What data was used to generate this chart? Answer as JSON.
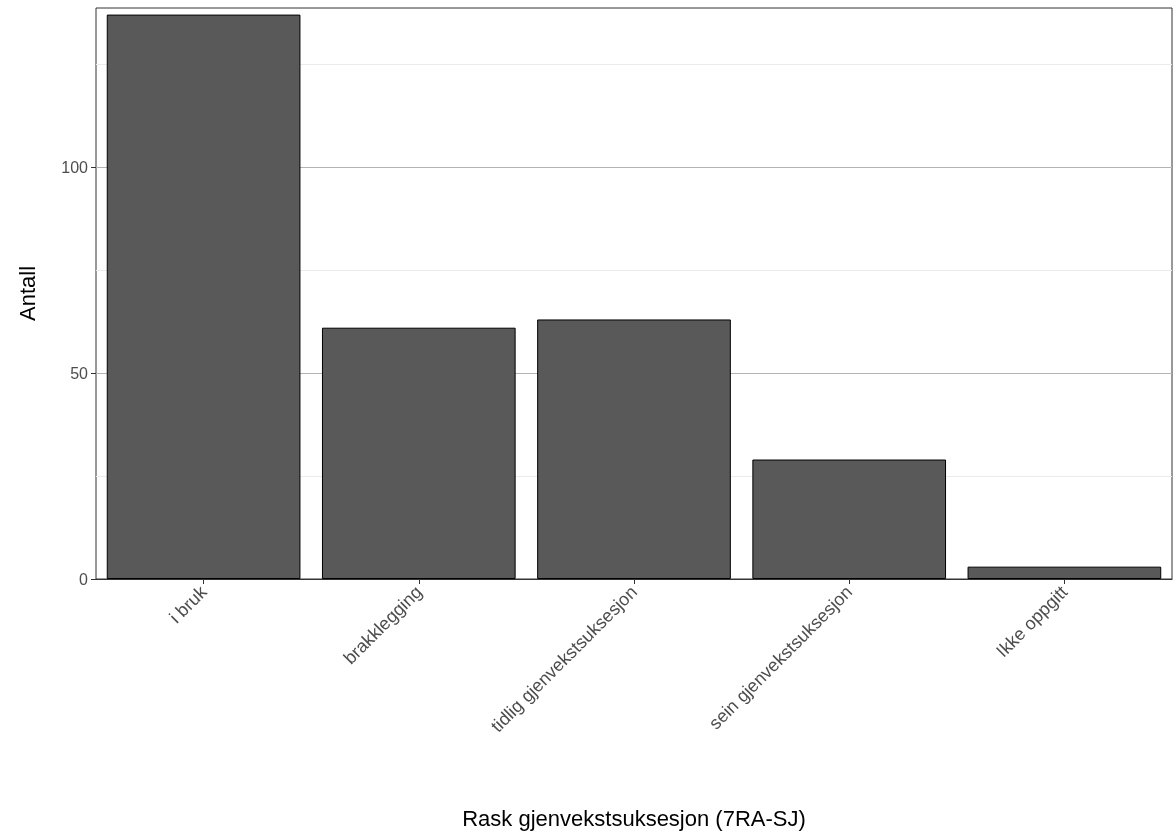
{
  "chart_data": {
    "type": "bar",
    "xlabel": "Rask gjenvekstsuksesjon (7RA-SJ)",
    "ylabel": "Antall",
    "categories": [
      "i bruk",
      "brakklegging",
      "tidlig gjenvekstsuksesjon",
      "sein gjenvekstsuksesjon",
      "Ikke oppgitt"
    ],
    "values": [
      137,
      61,
      63,
      29,
      3
    ],
    "color": "#595959",
    "ylim": [
      0,
      138.6
    ],
    "yticks": [
      0,
      50,
      100
    ],
    "grid": "y"
  }
}
